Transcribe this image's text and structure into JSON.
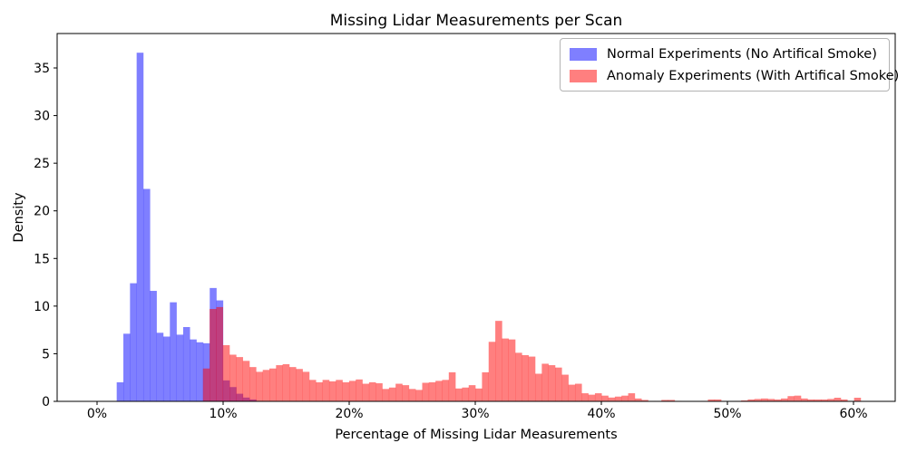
{
  "figure": {
    "background": "#ffffff",
    "spine_color": "#000000"
  },
  "chart_data": {
    "type": "histogram",
    "title": "Missing Lidar Measurements per Scan",
    "grid": false,
    "x_axis": {
      "label": "Percentage of Missing Lidar Measurements",
      "tick_labels": [
        "0%",
        "10%",
        "20%",
        "30%",
        "40%",
        "50%",
        "60%"
      ],
      "tick_values": [
        0,
        10,
        20,
        30,
        40,
        50,
        60
      ],
      "range_percent": [
        -3.2,
        63.3
      ]
    },
    "y_axis": {
      "label": "Density",
      "tick_labels": [
        "0",
        "5",
        "10",
        "15",
        "20",
        "25",
        "30",
        "35"
      ],
      "tick_values": [
        0,
        5,
        10,
        15,
        20,
        25,
        30,
        35
      ],
      "range": [
        0,
        38.6
      ]
    },
    "bin_width_percent": 0.527,
    "series": [
      {
        "name": "Normal Experiments (No Artifical Smoke)",
        "color": "#0000ff",
        "alpha": 0.5,
        "bin_start_percent": 1.56,
        "densities": [
          2.0,
          7.1,
          12.4,
          36.6,
          22.3,
          11.6,
          7.2,
          6.8,
          10.4,
          7.0,
          7.8,
          6.5,
          6.2,
          6.1,
          11.9,
          10.6,
          2.2,
          1.5,
          0.8,
          0.4,
          0.2
        ]
      },
      {
        "name": "Anomaly Experiments (With Artifical Smoke)",
        "color": "#ff0000",
        "alpha": 0.5,
        "bin_start_percent": 8.4,
        "densities": [
          3.45,
          9.7,
          9.9,
          5.9,
          4.9,
          4.65,
          4.25,
          3.6,
          3.1,
          3.3,
          3.45,
          3.8,
          3.9,
          3.6,
          3.4,
          3.1,
          2.25,
          2.0,
          2.25,
          2.1,
          2.25,
          2.0,
          2.15,
          2.3,
          1.85,
          2.0,
          1.9,
          1.3,
          1.45,
          1.85,
          1.7,
          1.3,
          1.2,
          1.95,
          2.0,
          2.15,
          2.25,
          3.05,
          1.35,
          1.45,
          1.7,
          1.35,
          3.05,
          6.25,
          8.45,
          6.6,
          6.5,
          5.1,
          4.85,
          4.7,
          2.9,
          3.95,
          3.8,
          3.55,
          2.8,
          1.75,
          1.85,
          0.85,
          0.7,
          0.85,
          0.6,
          0.4,
          0.5,
          0.6,
          0.85,
          0.3,
          0.15,
          0.05,
          0.05,
          0.15,
          0.15,
          0.05,
          0,
          0,
          0,
          0.05,
          0.2,
          0.2,
          0.05,
          0,
          0.05,
          0.1,
          0.2,
          0.25,
          0.3,
          0.25,
          0.2,
          0.3,
          0.55,
          0.6,
          0.3,
          0.2,
          0.2,
          0.2,
          0.25,
          0.38,
          0.2,
          0.05,
          0.38,
          0.02
        ]
      }
    ],
    "legend": {
      "position": "upper right",
      "entries": [
        "Normal Experiments (No Artifical Smoke)",
        "Anomaly Experiments (With Artifical Smoke)"
      ]
    }
  }
}
